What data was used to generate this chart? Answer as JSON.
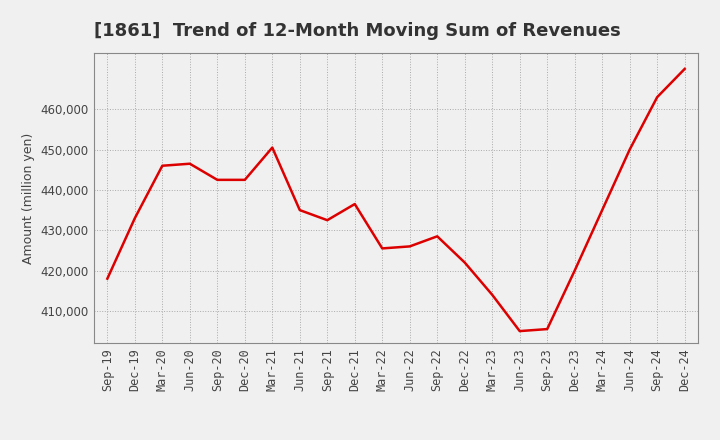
{
  "title": "[1861]  Trend of 12-Month Moving Sum of Revenues",
  "ylabel": "Amount (million yen)",
  "background_color": "#f0f0f0",
  "plot_bg_color": "#f0f0f0",
  "line_color": "#dd0000",
  "line_width": 1.8,
  "x_labels": [
    "Sep-19",
    "Dec-19",
    "Mar-20",
    "Jun-20",
    "Sep-20",
    "Dec-20",
    "Mar-21",
    "Jun-21",
    "Sep-21",
    "Dec-21",
    "Mar-22",
    "Jun-22",
    "Sep-22",
    "Dec-22",
    "Mar-23",
    "Jun-23",
    "Sep-23",
    "Dec-23",
    "Mar-24",
    "Jun-24",
    "Sep-24",
    "Dec-24"
  ],
  "y_values": [
    418000,
    433000,
    446000,
    446500,
    442500,
    442500,
    450500,
    435000,
    432500,
    436500,
    425500,
    426000,
    428500,
    422000,
    414000,
    405000,
    405500,
    420000,
    435000,
    450000,
    463000,
    470000
  ],
  "ylim": [
    402000,
    474000
  ],
  "yticks": [
    410000,
    420000,
    430000,
    440000,
    450000,
    460000
  ],
  "title_fontsize": 13,
  "axis_fontsize": 9,
  "tick_fontsize": 8.5,
  "grid_color": "#aaaaaa",
  "spine_color": "#888888"
}
